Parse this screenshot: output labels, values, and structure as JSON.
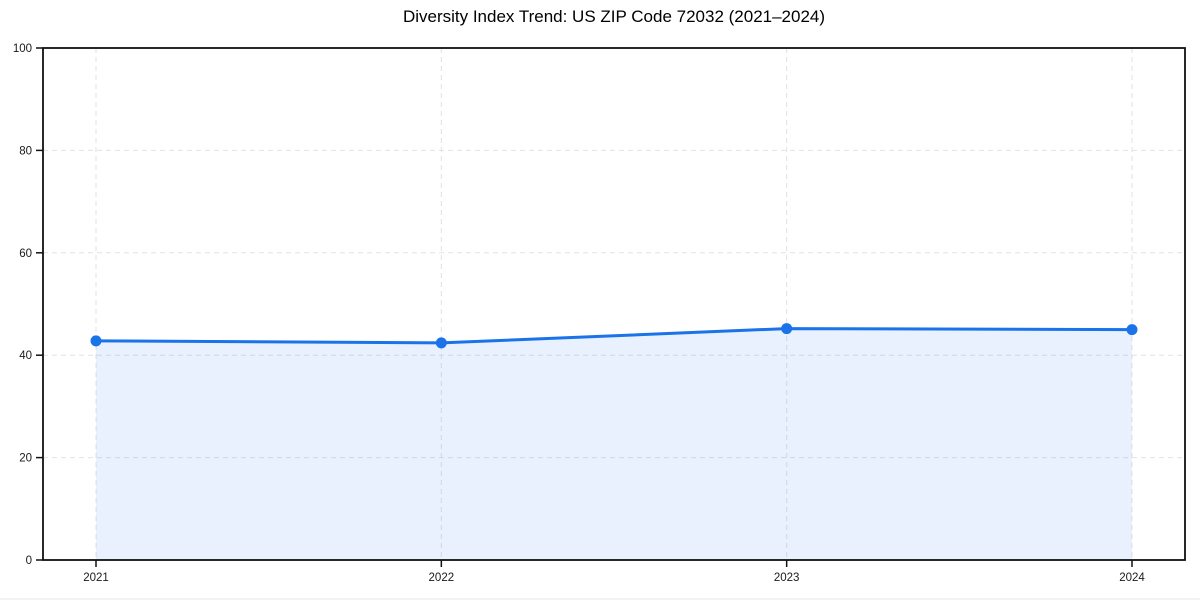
{
  "page": {
    "background": "#ffffff"
  },
  "chart_data": {
    "type": "line",
    "title": "Diversity Index Trend: US ZIP Code 72032 (2021–2024)",
    "x": [
      "2021",
      "2022",
      "2023",
      "2024"
    ],
    "series": [
      {
        "name": "Diversity Index",
        "values": [
          42.8,
          42.4,
          45.2,
          45.0
        ]
      }
    ],
    "xlabel": "",
    "ylabel": "",
    "ylim": [
      0,
      100
    ],
    "yticks": [
      0,
      20,
      40,
      60,
      80,
      100
    ],
    "grid": "dashed, horizontal and vertical",
    "legend_position": "none",
    "area_fill": true,
    "marker": "circle",
    "colors": {
      "line": "#1a73e8",
      "fill": "rgba(26,115,232,0.10)",
      "grid": "#e2e2e2",
      "axis": "#111111",
      "tick_label": "#1a1a1a",
      "title": "#000000"
    }
  }
}
